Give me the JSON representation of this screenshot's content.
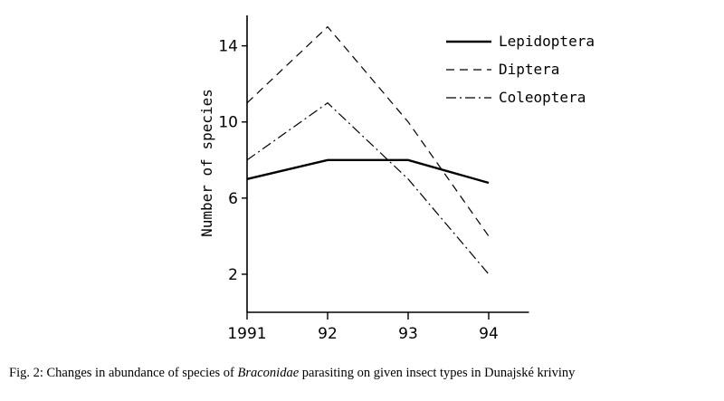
{
  "chart_data": {
    "type": "line",
    "title": "",
    "xlabel": "",
    "ylabel": "Number of species",
    "categories": [
      "1991",
      "92",
      "93",
      "94"
    ],
    "x": [
      1991,
      1992,
      1993,
      1994
    ],
    "xlim": [
      1991,
      1994.5
    ],
    "ylim": [
      0,
      15.6
    ],
    "yticks": [
      2,
      6,
      10,
      14
    ],
    "yticks_labels": [
      "2",
      "6",
      "10",
      "14"
    ],
    "grid": false,
    "legend_position": "top-right",
    "series": [
      {
        "name": "Lepidoptera",
        "style": "solid",
        "values": [
          7,
          8,
          8,
          6.8
        ]
      },
      {
        "name": "Diptera",
        "style": "dashed",
        "values": [
          11,
          15,
          10,
          4
        ]
      },
      {
        "name": "Coleoptera",
        "style": "dash-dot",
        "values": [
          8,
          11,
          7,
          2
        ]
      }
    ]
  },
  "caption": {
    "prefix": "Fig. 2: Changes in abundance of species of ",
    "taxon": "Braconidae",
    "suffix": " parasiting on given insect types in Dunajské kriviny"
  }
}
